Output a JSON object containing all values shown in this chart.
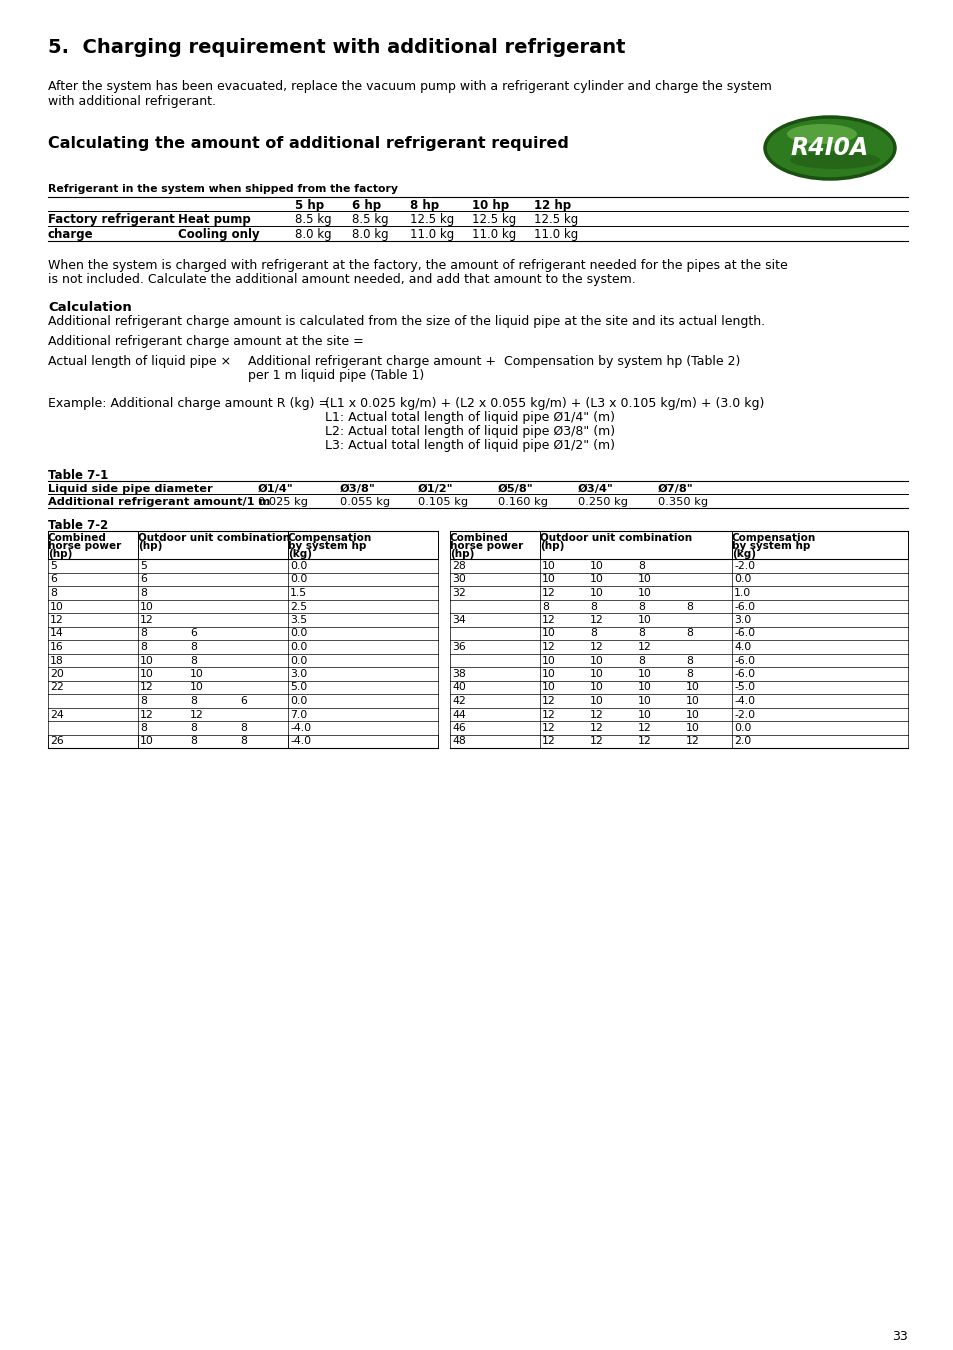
{
  "title": "5.  Charging requirement with additional refrigerant",
  "intro_text1": "After the system has been evacuated, replace the vacuum pump with a refrigerant cylinder and charge the system",
  "intro_text2": "with additional refrigerant.",
  "section2_title": "Calculating the amount of additional refrigerant required",
  "table1_caption": "Refrigerant in the system when shipped from the factory",
  "para2_line1": "When the system is charged with refrigerant at the factory, the amount of refrigerant needed for the pipes at the site",
  "para2_line2": "is not included. Calculate the additional amount needed, and add that amount to the system.",
  "calc_title": "Calculation",
  "calc_text1": "Additional refrigerant charge amount is calculated from the size of the liquid pipe at the site and its actual length.",
  "calc_text2": "Additional refrigerant charge amount at the site =",
  "formula_left": "Actual length of liquid pipe ×",
  "formula_right1": "Additional refrigerant charge amount +  Compensation by system hp (Table 2)",
  "formula_right2": "per 1 m liquid pipe (Table 1)",
  "example_left": "Example: Additional charge amount R (kg) =",
  "example_right1": "(L1 x 0.025 kg/m) + (L2 x 0.055 kg/m) + (L3 x 0.105 kg/m) + (3.0 kg)",
  "example_right2": "L1: Actual total length of liquid pipe Ø1/4\" (m)",
  "example_right3": "L2: Actual total length of liquid pipe Ø3/8\" (m)",
  "example_right4": "L3: Actual total length of liquid pipe Ø1/2\" (m)",
  "table71_label": "Table 7-1",
  "table72_label": "Table 7-2",
  "table72_left": [
    [
      "5",
      "5",
      "",
      "",
      "0.0"
    ],
    [
      "6",
      "6",
      "",
      "",
      "0.0"
    ],
    [
      "8",
      "8",
      "",
      "",
      "1.5"
    ],
    [
      "10",
      "10",
      "",
      "",
      "2.5"
    ],
    [
      "12",
      "12",
      "",
      "",
      "3.5"
    ],
    [
      "14",
      "8",
      "6",
      "",
      "0.0"
    ],
    [
      "16",
      "8",
      "8",
      "",
      "0.0"
    ],
    [
      "18",
      "10",
      "8",
      "",
      "0.0"
    ],
    [
      "20",
      "10",
      "10",
      "",
      "3.0"
    ],
    [
      "22",
      "12",
      "10",
      "",
      "5.0"
    ],
    [
      "",
      "8",
      "8",
      "6",
      "0.0"
    ],
    [
      "24",
      "12",
      "12",
      "",
      "7.0"
    ],
    [
      "",
      "8",
      "8",
      "8",
      "-4.0"
    ],
    [
      "26",
      "10",
      "8",
      "8",
      "-4.0"
    ]
  ],
  "table72_right": [
    [
      "28",
      "10",
      "10",
      "8",
      "",
      "-2.0"
    ],
    [
      "30",
      "10",
      "10",
      "10",
      "",
      "0.0"
    ],
    [
      "32",
      "12",
      "10",
      "10",
      "",
      "1.0"
    ],
    [
      "",
      "8",
      "8",
      "8",
      "8",
      "-6.0"
    ],
    [
      "34",
      "12",
      "12",
      "10",
      "",
      "3.0"
    ],
    [
      "",
      "10",
      "8",
      "8",
      "8",
      "-6.0"
    ],
    [
      "36",
      "12",
      "12",
      "12",
      "",
      "4.0"
    ],
    [
      "",
      "10",
      "10",
      "8",
      "8",
      "-6.0"
    ],
    [
      "38",
      "10",
      "10",
      "10",
      "8",
      "-6.0"
    ],
    [
      "40",
      "10",
      "10",
      "10",
      "10",
      "-5.0"
    ],
    [
      "42",
      "12",
      "10",
      "10",
      "10",
      "-4.0"
    ],
    [
      "44",
      "12",
      "12",
      "10",
      "10",
      "-2.0"
    ],
    [
      "46",
      "12",
      "12",
      "12",
      "10",
      "0.0"
    ],
    [
      "48",
      "12",
      "12",
      "12",
      "12",
      "2.0"
    ]
  ],
  "page_number": "33",
  "bg_color": "#ffffff"
}
